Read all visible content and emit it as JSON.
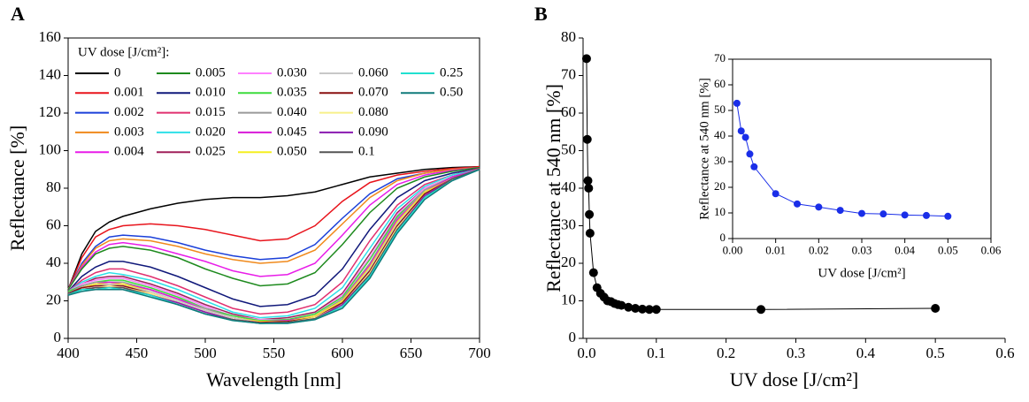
{
  "chart_data": [
    {
      "type": "line",
      "panel_label": "A",
      "xlabel": "Wavelength [nm]",
      "ylabel": "Reflectance [%]",
      "legend_title": "UV dose [J/cm²]:",
      "xlim": [
        400,
        700
      ],
      "xticks": [
        400,
        450,
        500,
        550,
        600,
        650,
        700
      ],
      "ylim": [
        0,
        160
      ],
      "yticks": [
        0,
        20,
        40,
        60,
        80,
        100,
        120,
        140,
        160
      ],
      "x": [
        400,
        410,
        420,
        430,
        440,
        460,
        480,
        500,
        520,
        540,
        560,
        580,
        600,
        620,
        640,
        660,
        680,
        700
      ],
      "series": [
        {
          "name": "0",
          "color": "#000000",
          "values": [
            26,
            45,
            57,
            62,
            65,
            69,
            72,
            74,
            75,
            75,
            76,
            78,
            82,
            86,
            88,
            90,
            91,
            91.5
          ]
        },
        {
          "name": "0.001",
          "color": "#e8141c",
          "values": [
            26,
            43,
            54,
            58,
            60,
            61,
            60,
            58,
            55,
            52,
            53,
            60,
            73,
            83,
            87,
            89,
            90.5,
            91.5
          ]
        },
        {
          "name": "0.002",
          "color": "#1a3fd9",
          "values": [
            26,
            40,
            49,
            54,
            55,
            54,
            51,
            47,
            44,
            42,
            43,
            50,
            64,
            77,
            85,
            88,
            90,
            91
          ]
        },
        {
          "name": "0.003",
          "color": "#f08a1c",
          "values": [
            26,
            39,
            48,
            52,
            53,
            52,
            49,
            45,
            42,
            40,
            41,
            47,
            61,
            75,
            84,
            88,
            90,
            91
          ]
        },
        {
          "name": "0.004",
          "color": "#e81ce8",
          "values": [
            26,
            38,
            46,
            50,
            51,
            49,
            45,
            41,
            36,
            33,
            34,
            40,
            55,
            71,
            82,
            87,
            89.5,
            91
          ]
        },
        {
          "name": "0.005",
          "color": "#1e8a1e",
          "values": [
            26,
            37,
            45,
            48,
            49,
            47,
            43,
            37,
            32,
            28,
            29,
            35,
            50,
            67,
            80,
            86,
            89,
            91
          ]
        },
        {
          "name": "0.010",
          "color": "#10187a",
          "values": [
            25,
            33,
            38,
            41,
            41,
            38,
            33,
            27,
            21,
            17,
            18,
            23,
            37,
            58,
            75,
            84,
            88,
            90.5
          ]
        },
        {
          "name": "0.015",
          "color": "#e0306f",
          "values": [
            25,
            31,
            35,
            37,
            37,
            33,
            28,
            22,
            16,
            13,
            14,
            18,
            30,
            52,
            71,
            82,
            87,
            90.5
          ]
        },
        {
          "name": "0.020",
          "color": "#2ee0e8",
          "values": [
            25,
            30,
            33,
            35,
            34,
            31,
            26,
            20,
            14,
            11,
            12,
            16,
            27,
            48,
            69,
            81,
            87,
            90
          ]
        },
        {
          "name": "0.025",
          "color": "#a0205a",
          "values": [
            25,
            29,
            32,
            33,
            33,
            29,
            24,
            18,
            13,
            10,
            11,
            14,
            24,
            45,
            67,
            80,
            86,
            90
          ]
        },
        {
          "name": "0.030",
          "color": "#ff80ff",
          "values": [
            25,
            29,
            31,
            32,
            32,
            28,
            23,
            17,
            12,
            10,
            10,
            13,
            23,
            43,
            66,
            80,
            86,
            90
          ]
        },
        {
          "name": "0.035",
          "color": "#3cdc3c",
          "values": [
            25,
            28,
            30,
            31,
            31,
            27,
            22,
            16,
            12,
            9.5,
            10,
            13,
            22,
            42,
            65,
            79,
            86,
            90
          ]
        },
        {
          "name": "0.040",
          "color": "#999999",
          "values": [
            24,
            28,
            30,
            30,
            30,
            26,
            21,
            16,
            11,
            9,
            9.5,
            12,
            21,
            40,
            64,
            79,
            86,
            90
          ]
        },
        {
          "name": "0.045",
          "color": "#d81ad8",
          "values": [
            24,
            27,
            29,
            30,
            29,
            26,
            21,
            15,
            11,
            9,
            9.5,
            12,
            20,
            39,
            63,
            78,
            86,
            90
          ]
        },
        {
          "name": "0.050",
          "color": "#f5ef20",
          "values": [
            24,
            27,
            29,
            29,
            29,
            25,
            20,
            15,
            11,
            9,
            9,
            12,
            20,
            38,
            62,
            78,
            85,
            90
          ]
        },
        {
          "name": "0.060",
          "color": "#c8c8c8",
          "values": [
            24,
            27,
            28,
            29,
            28,
            25,
            20,
            15,
            11,
            8.5,
            9,
            11,
            19,
            37,
            61,
            77,
            85,
            90
          ]
        },
        {
          "name": "0.070",
          "color": "#8a1010",
          "values": [
            24,
            27,
            28,
            28,
            28,
            24,
            19,
            14,
            10,
            8.5,
            9,
            11,
            19,
            36,
            60,
            77,
            85,
            90
          ]
        },
        {
          "name": "0.080",
          "color": "#f7f08a",
          "values": [
            24,
            26,
            27,
            28,
            27,
            24,
            19,
            14,
            10,
            8,
            8.5,
            11,
            18,
            35,
            59,
            76,
            85,
            90
          ]
        },
        {
          "name": "0.090",
          "color": "#8a1ab0",
          "values": [
            24,
            26,
            27,
            27,
            27,
            23,
            19,
            14,
            10,
            8,
            8.5,
            10.5,
            18,
            34,
            58,
            76,
            85,
            90
          ]
        },
        {
          "name": "0.1",
          "color": "#555555",
          "values": [
            24,
            26,
            27,
            27,
            27,
            23,
            18,
            13,
            10,
            8,
            8.5,
            10.5,
            17,
            34,
            58,
            75,
            85,
            90
          ]
        },
        {
          "name": "0.25",
          "color": "#20e0d0",
          "values": [
            23,
            26,
            26,
            27,
            26,
            23,
            18,
            13,
            9.5,
            8,
            8,
            10,
            17,
            33,
            57,
            75,
            84,
            90
          ]
        },
        {
          "name": "0.50",
          "color": "#107a7a",
          "values": [
            23,
            25,
            26,
            26,
            26,
            22,
            18,
            13,
            9.5,
            8,
            8,
            10,
            16,
            32,
            56,
            74,
            84,
            90
          ]
        }
      ]
    },
    {
      "type": "scatter",
      "panel_label": "B",
      "xlabel": "UV dose [J/cm²]",
      "ylabel": "Reflectance at 540 nm [%]",
      "xlim": [
        -0.005,
        0.6
      ],
      "xticks": [
        {
          "value": 0,
          "label": "0.0"
        },
        0.1,
        0.2,
        0.3,
        0.4,
        0.5,
        0.6
      ],
      "ylim": [
        0,
        80
      ],
      "yticks": [
        0,
        10,
        20,
        30,
        40,
        50,
        60,
        70,
        80
      ],
      "color": "#000000",
      "x": [
        0,
        0.001,
        0.002,
        0.003,
        0.004,
        0.005,
        0.01,
        0.015,
        0.02,
        0.025,
        0.03,
        0.035,
        0.04,
        0.045,
        0.05,
        0.06,
        0.07,
        0.08,
        0.09,
        0.1,
        0.25,
        0.5
      ],
      "values": [
        74.5,
        53,
        42,
        40,
        33,
        28,
        17.5,
        13.5,
        12,
        11,
        10,
        9.8,
        9.3,
        9,
        8.8,
        8.3,
        8,
        7.8,
        7.7,
        7.7,
        7.7,
        8
      ]
    },
    {
      "type": "scatter",
      "xlabel": "UV dose [J/cm²]",
      "ylabel": "Reflectance at 540 nm [%]",
      "xlim": [
        0,
        0.06
      ],
      "xticks": [
        {
          "value": 0,
          "label": "0.00"
        },
        0.01,
        0.02,
        0.03,
        0.04,
        0.05,
        0.06
      ],
      "ylim": [
        0,
        70
      ],
      "yticks": [
        0,
        10,
        20,
        30,
        40,
        50,
        60,
        70
      ],
      "color": "#1a2ee8",
      "x": [
        0.001,
        0.002,
        0.003,
        0.004,
        0.005,
        0.01,
        0.015,
        0.02,
        0.025,
        0.03,
        0.035,
        0.04,
        0.045,
        0.05
      ],
      "values": [
        52.8,
        42,
        39.5,
        33,
        28,
        17.5,
        13.5,
        12.3,
        11,
        9.8,
        9.6,
        9.2,
        9,
        8.7
      ]
    }
  ]
}
